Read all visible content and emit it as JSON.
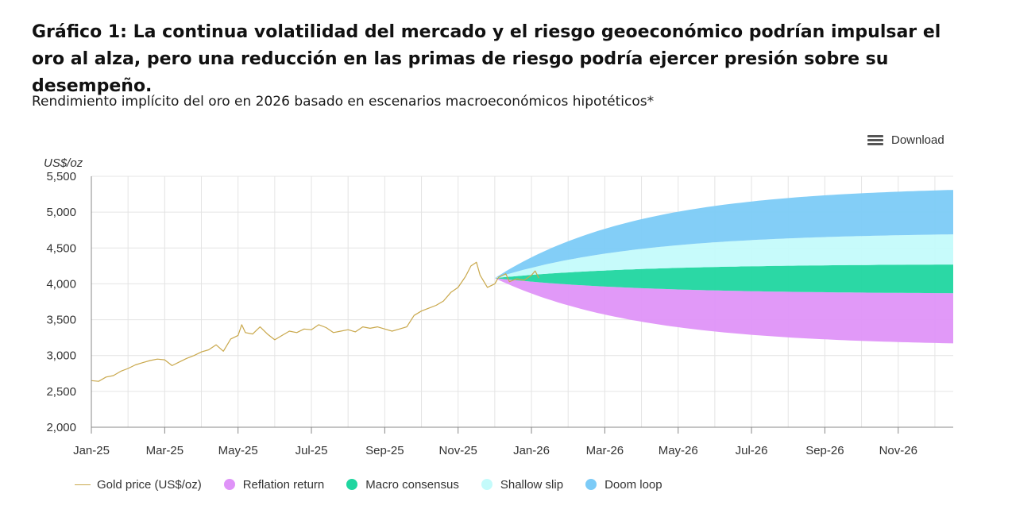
{
  "header": {
    "title": "Gráfico 1: La continua volatilidad del mercado y el riesgo geoeconómico podrían impulsar el oro al alza, pero una reducción en las primas de riesgo podría ejercer presión sobre su desempeño.",
    "subtitle": "Rendimiento implícito del oro en 2026 basado en escenarios macroeconómicos hipotéticos*"
  },
  "toolbar": {
    "download_label": "Download",
    "download_icon": "hamburger-menu-icon"
  },
  "legend": {
    "gold": "Gold price (US$/oz)",
    "reflation": "Reflation return",
    "macro": "Macro consensus",
    "shallow": "Shallow slip",
    "doom": "Doom loop"
  },
  "colors": {
    "gold": "#c9a84c",
    "reflation": "#df93f8",
    "macro": "#20d6a0",
    "shallow": "#c4fbfb",
    "doom": "#7ccbf7",
    "grid": "#e4e4e4",
    "axis": "#888888"
  },
  "chart_data": {
    "type": "area",
    "ylabel": "US$/oz",
    "ylim": [
      2000,
      5500
    ],
    "yticks": [
      2000,
      2500,
      3000,
      3500,
      4000,
      4500,
      5000,
      5500
    ],
    "ytick_labels": [
      "2,000",
      "2,500",
      "3,000",
      "3,500",
      "4,000",
      "4,500",
      "5,000",
      "5,500"
    ],
    "xrange_months": [
      0,
      23.5
    ],
    "xticks": [
      {
        "label": "Jan-25",
        "month": 0
      },
      {
        "label": "Mar-25",
        "month": 2
      },
      {
        "label": "May-25",
        "month": 4
      },
      {
        "label": "Jul-25",
        "month": 6
      },
      {
        "label": "Sep-25",
        "month": 8
      },
      {
        "label": "Nov-25",
        "month": 10
      },
      {
        "label": "Jan-26",
        "month": 12
      },
      {
        "label": "Mar-26",
        "month": 14
      },
      {
        "label": "May-26",
        "month": 16
      },
      {
        "label": "Jul-26",
        "month": 18
      },
      {
        "label": "Sep-26",
        "month": 20
      },
      {
        "label": "Nov-26",
        "month": 22
      }
    ],
    "grid": true,
    "gold_price": {
      "name": "Gold price (US$/oz)",
      "points": [
        [
          0,
          2650
        ],
        [
          0.2,
          2640
        ],
        [
          0.4,
          2700
        ],
        [
          0.6,
          2720
        ],
        [
          0.8,
          2780
        ],
        [
          1.0,
          2820
        ],
        [
          1.2,
          2870
        ],
        [
          1.4,
          2900
        ],
        [
          1.6,
          2930
        ],
        [
          1.8,
          2950
        ],
        [
          2.0,
          2940
        ],
        [
          2.2,
          2860
        ],
        [
          2.4,
          2910
        ],
        [
          2.6,
          2960
        ],
        [
          2.8,
          3000
        ],
        [
          3.0,
          3050
        ],
        [
          3.2,
          3080
        ],
        [
          3.4,
          3150
        ],
        [
          3.6,
          3060
        ],
        [
          3.8,
          3230
        ],
        [
          4.0,
          3280
        ],
        [
          4.1,
          3430
        ],
        [
          4.2,
          3320
        ],
        [
          4.4,
          3300
        ],
        [
          4.6,
          3400
        ],
        [
          4.8,
          3300
        ],
        [
          5.0,
          3220
        ],
        [
          5.2,
          3280
        ],
        [
          5.4,
          3340
        ],
        [
          5.6,
          3320
        ],
        [
          5.8,
          3370
        ],
        [
          6.0,
          3360
        ],
        [
          6.2,
          3430
        ],
        [
          6.4,
          3390
        ],
        [
          6.6,
          3320
        ],
        [
          6.8,
          3340
        ],
        [
          7.0,
          3360
        ],
        [
          7.2,
          3330
        ],
        [
          7.4,
          3400
        ],
        [
          7.6,
          3380
        ],
        [
          7.8,
          3400
        ],
        [
          8.0,
          3370
        ],
        [
          8.2,
          3340
        ],
        [
          8.4,
          3370
        ],
        [
          8.6,
          3400
        ],
        [
          8.8,
          3560
        ],
        [
          9.0,
          3620
        ],
        [
          9.2,
          3660
        ],
        [
          9.4,
          3700
        ],
        [
          9.6,
          3760
        ],
        [
          9.8,
          3880
        ],
        [
          10.0,
          3950
        ],
        [
          10.2,
          4100
        ],
        [
          10.35,
          4250
        ],
        [
          10.5,
          4300
        ],
        [
          10.6,
          4120
        ],
        [
          10.8,
          3950
        ],
        [
          11.0,
          4000
        ],
        [
          11.1,
          4090
        ],
        [
          11.3,
          4140
        ],
        [
          11.4,
          4030
        ],
        [
          11.6,
          4070
        ],
        [
          11.8,
          4050
        ],
        [
          12.0,
          4120
        ],
        [
          12.1,
          4180
        ],
        [
          12.2,
          4080
        ]
      ]
    },
    "scenario_start": {
      "month": 11.0,
      "value": 4080
    },
    "scenario_end_month": 23.5,
    "scenarios": [
      {
        "name": "Reflation return",
        "from": "reflation_lower",
        "to": "macro_lower",
        "color": "reflation"
      },
      {
        "name": "Macro consensus",
        "from": "macro_lower",
        "to": "macro_upper",
        "color": "macro"
      },
      {
        "name": "Shallow slip",
        "from": "macro_upper",
        "to": "shallow_upper",
        "color": "shallow"
      },
      {
        "name": "Doom loop",
        "from": "shallow_upper",
        "to": "doom_upper",
        "color": "doom"
      }
    ],
    "band_end_values": {
      "reflation_lower": 3170,
      "macro_lower": 3870,
      "macro_upper": 4270,
      "shallow_upper": 4690,
      "doom_upper": 5310
    },
    "convergence_rate": 3.2
  }
}
